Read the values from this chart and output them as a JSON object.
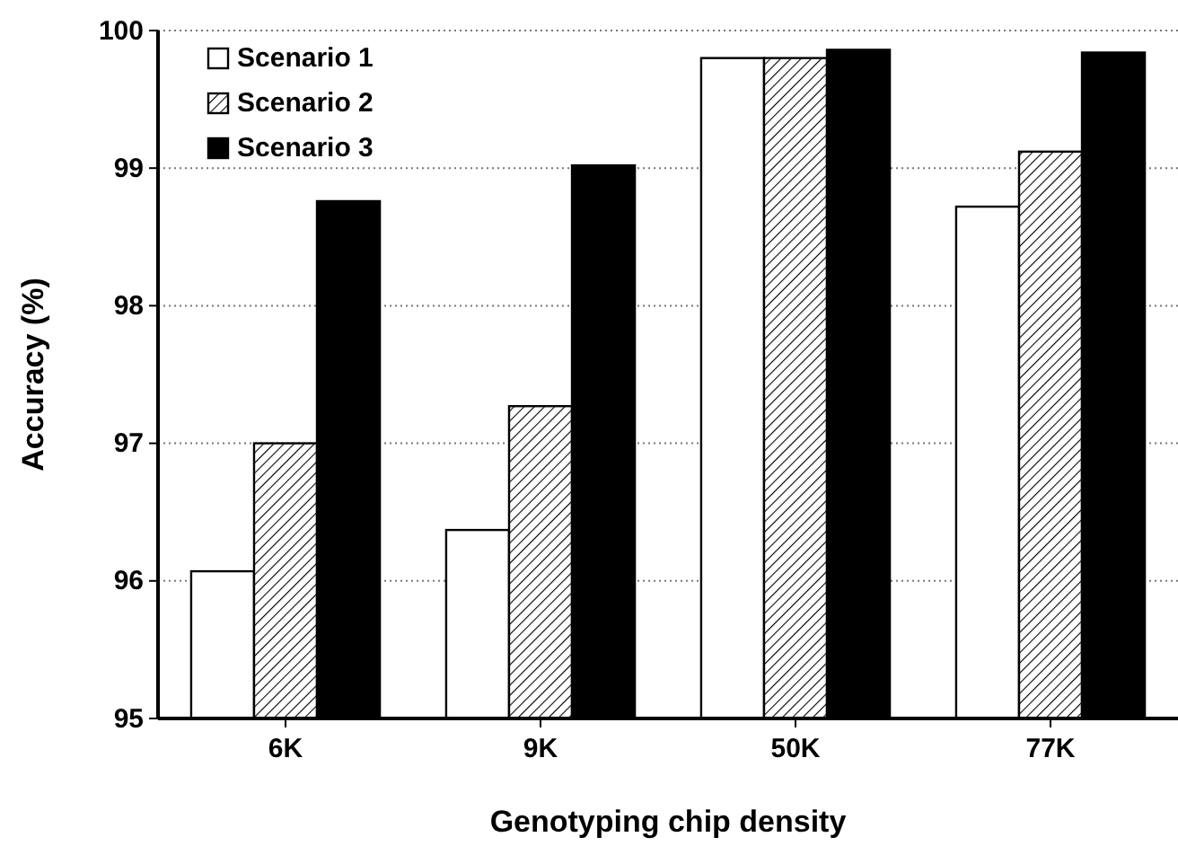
{
  "chart_data": {
    "type": "bar",
    "xlabel": "Genotyping chip density",
    "ylabel": "Accuracy (%)",
    "categories": [
      "6K",
      "9K",
      "50K",
      "77K"
    ],
    "series": [
      {
        "name": "Scenario 1",
        "color": "#ffffff",
        "values": [
          96.07,
          96.37,
          99.8,
          98.72
        ]
      },
      {
        "name": "Scenario 2",
        "color": "#000000",
        "values": [
          97.0,
          97.27,
          99.8,
          99.12
        ]
      },
      {
        "name": "Scenario 3",
        "color": "#000000",
        "values": [
          98.76,
          99.02,
          99.86,
          99.84
        ]
      }
    ],
    "ylim": [
      95,
      100
    ],
    "yticks": [
      95,
      96,
      97,
      98,
      99,
      100
    ],
    "grid": "y",
    "legend": "top left"
  }
}
